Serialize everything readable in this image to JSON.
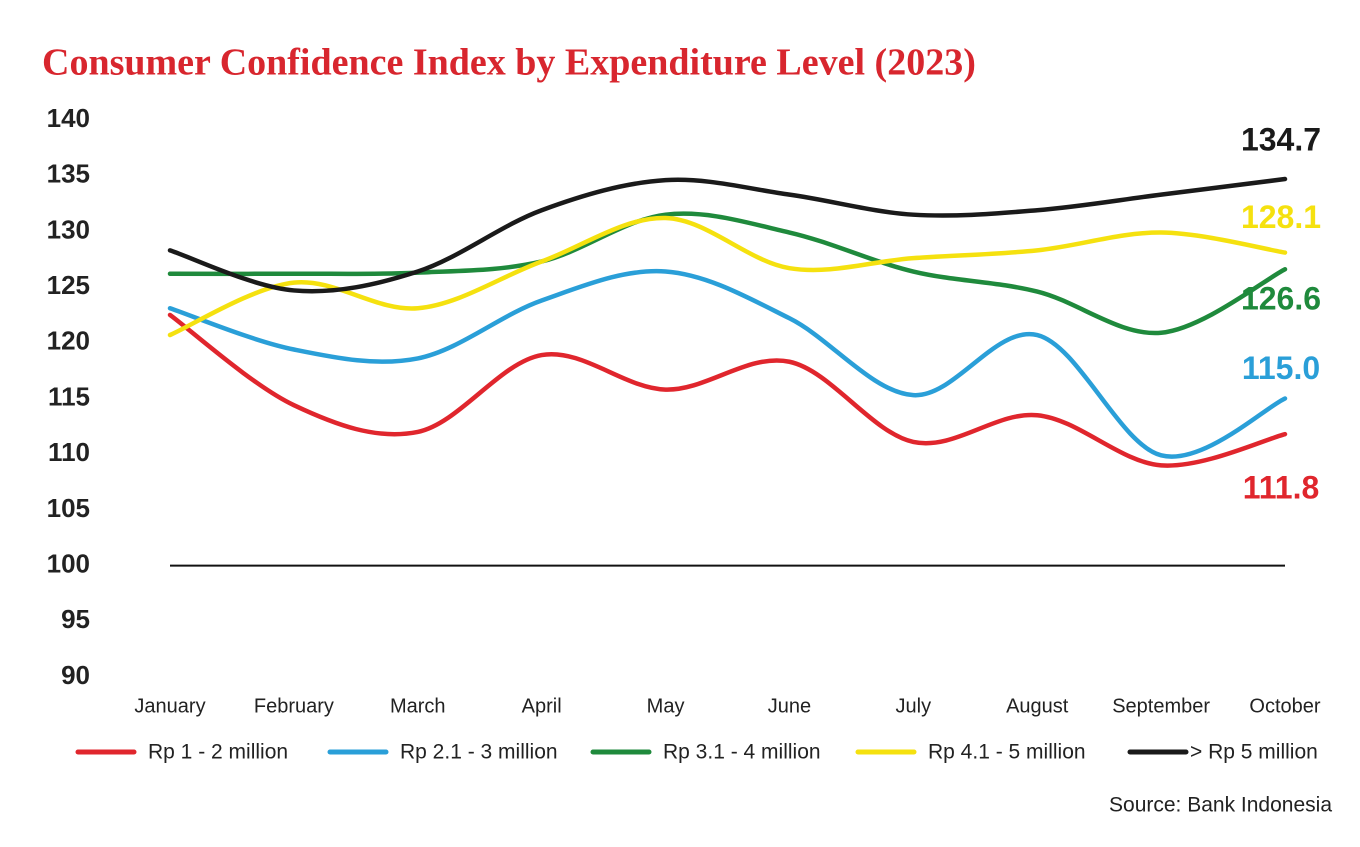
{
  "chart_data": {
    "type": "line",
    "title": "Consumer Confidence Index by Expenditure Level (2023)",
    "source": "Source: Bank Indonesia",
    "categories": [
      "January",
      "February",
      "March",
      "April",
      "May",
      "June",
      "July",
      "August",
      "September",
      "October"
    ],
    "series": [
      {
        "name": "Rp 1 - 2 million",
        "color": "#e0262d",
        "values": [
          122.5,
          114.4,
          112.0,
          118.9,
          115.8,
          118.3,
          111.1,
          113.5,
          109.0,
          111.8
        ],
        "value_labels": [
          null,
          null,
          null,
          null,
          null,
          null,
          null,
          null,
          null,
          "111.8"
        ]
      },
      {
        "name": "Rp 2.1 - 3 million",
        "color": "#2a9fd8",
        "values": [
          123.1,
          119.4,
          118.6,
          123.8,
          126.4,
          122.2,
          115.3,
          120.7,
          109.9,
          115.0
        ],
        "value_labels": [
          null,
          null,
          null,
          null,
          null,
          null,
          null,
          null,
          null,
          "115.0"
        ]
      },
      {
        "name": "Rp 3.1 - 4 million",
        "color": "#1f8a3c",
        "values": [
          126.2,
          126.2,
          126.3,
          127.3,
          131.5,
          129.9,
          126.4,
          124.6,
          120.9,
          126.6
        ],
        "value_labels": [
          null,
          null,
          null,
          null,
          null,
          null,
          null,
          null,
          null,
          "126.6"
        ]
      },
      {
        "name": "Rp 4.1 - 5 million",
        "color": "#f5e10f",
        "values": [
          120.7,
          125.4,
          123.1,
          127.3,
          131.2,
          126.7,
          127.6,
          128.3,
          129.9,
          128.1
        ],
        "value_labels": [
          null,
          null,
          null,
          null,
          null,
          null,
          null,
          null,
          null,
          "128.1"
        ]
      },
      {
        "name": "> Rp 5 million",
        "color": "#1a1a1a",
        "values": [
          128.3,
          124.7,
          126.4,
          131.9,
          134.6,
          133.3,
          131.5,
          131.9,
          133.3,
          134.7
        ],
        "value_labels": [
          null,
          null,
          null,
          null,
          null,
          null,
          null,
          null,
          null,
          "134.7"
        ]
      }
    ],
    "ylim": [
      90,
      140
    ],
    "yticks": [
      90,
      95,
      100,
      105,
      110,
      115,
      120,
      125,
      130,
      135,
      140
    ],
    "reference_line": 100,
    "grid": false,
    "legend": "bottom"
  }
}
